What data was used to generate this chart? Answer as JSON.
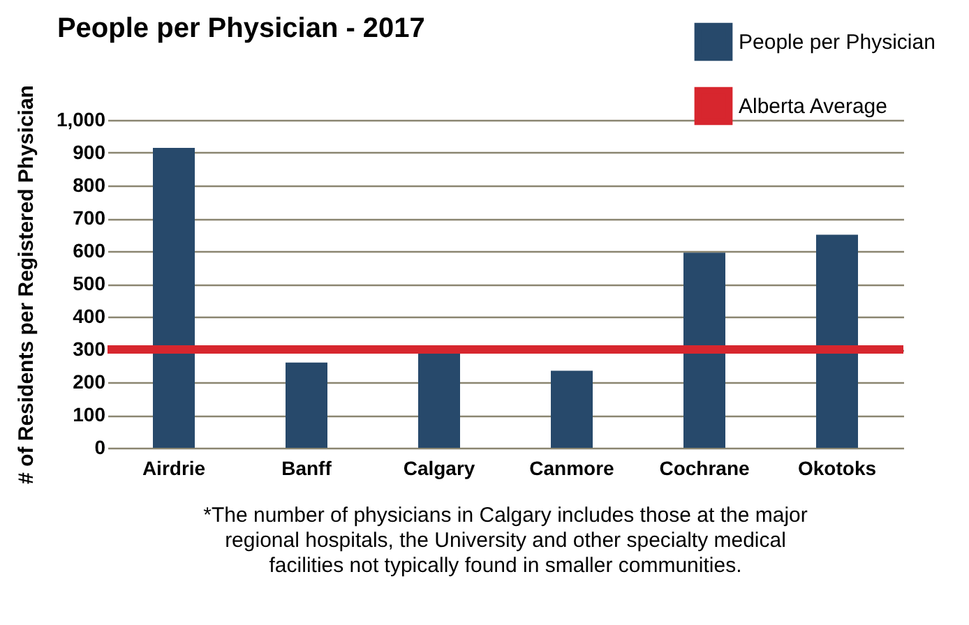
{
  "chart_data": {
    "type": "bar",
    "title": "People per Physician - 2017",
    "ylabel": "# of Residents per Registered Physician",
    "categories": [
      "Airdrie",
      "Banff",
      "Calgary",
      "Canmore",
      "Cochrane",
      "Okotoks"
    ],
    "series": [
      {
        "name": "People per Physician",
        "color": "#27496b",
        "values": [
          915,
          260,
          287,
          235,
          595,
          650
        ]
      }
    ],
    "ref_lines": [
      {
        "axis": "y",
        "value": 300,
        "label": "Alberta Average",
        "color": "#d7262e"
      }
    ],
    "ylim": [
      0,
      1000
    ],
    "yticks": [
      0,
      100,
      200,
      300,
      400,
      500,
      600,
      700,
      800,
      900,
      {
        "value": 1000,
        "label": "1,000"
      }
    ],
    "grid": "y",
    "legend": "top right",
    "annotations": [
      "*The number of physicians in Calgary includes those at the major regional hospitals, the University and other specialty medical facilities not typically found in smaller communities."
    ]
  }
}
